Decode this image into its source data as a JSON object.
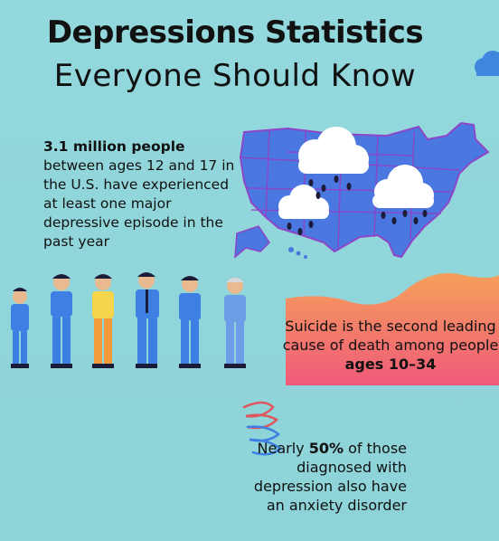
{
  "title": {
    "line1": "Depressions Statistics",
    "line2": "Everyone Should Know"
  },
  "stat1": {
    "bold": "3.1 million people",
    "rest": "between ages 12 and 17 in the U.S. have experienced at least one major depressive episode in the past year"
  },
  "stat2": {
    "text": "Suicide is the second leading cause of death among people",
    "bold": "ages 10–34"
  },
  "stat3": {
    "pre": "Nearly",
    "bold": "50%",
    "rest": "of those diagnosed with depression also have an anxiety disorder"
  },
  "colors": {
    "background": "#8fd6da",
    "map_blue": "#4a78e0",
    "map_border": "#8e45c8",
    "cloud": "#ffffff",
    "rain": "#1b1b3a",
    "gradient_top": "#f5a05a",
    "gradient_bottom": "#f05a7a",
    "person_blue": "#3d7fe3",
    "person_orange": "#f39a3a"
  },
  "icons": [
    "us-map-icon",
    "rain-cloud-icon",
    "people-group-icon",
    "scribble-spiral-icon",
    "small-cloud-icon"
  ]
}
